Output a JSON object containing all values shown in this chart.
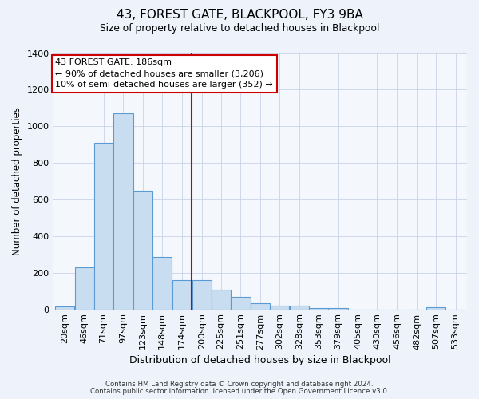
{
  "title": "43, FOREST GATE, BLACKPOOL, FY3 9BA",
  "subtitle": "Size of property relative to detached houses in Blackpool",
  "xlabel": "Distribution of detached houses by size in Blackpool",
  "ylabel": "Number of detached properties",
  "bin_labels": [
    "20sqm",
    "46sqm",
    "71sqm",
    "97sqm",
    "123sqm",
    "148sqm",
    "174sqm",
    "200sqm",
    "225sqm",
    "251sqm",
    "277sqm",
    "302sqm",
    "328sqm",
    "353sqm",
    "379sqm",
    "405sqm",
    "430sqm",
    "456sqm",
    "482sqm",
    "507sqm",
    "533sqm"
  ],
  "bin_centers": [
    20,
    46,
    71,
    97,
    123,
    148,
    174,
    200,
    225,
    251,
    277,
    302,
    328,
    353,
    379,
    405,
    430,
    456,
    482,
    507,
    533
  ],
  "bar_values": [
    15,
    228,
    910,
    1070,
    650,
    285,
    158,
    158,
    105,
    70,
    35,
    20,
    20,
    5,
    5,
    0,
    0,
    0,
    0,
    10,
    0
  ],
  "bar_color": "#c9ddf0",
  "bar_edge_color": "#5b9bd5",
  "vline_color": "#cc0000",
  "annotation_title": "43 FOREST GATE: 186sqm",
  "annotation_line1": "← 90% of detached houses are smaller (3,206)",
  "annotation_line2": "10% of semi-detached houses are larger (352) →",
  "ylim": [
    0,
    1400
  ],
  "yticks": [
    0,
    200,
    400,
    600,
    800,
    1000,
    1200,
    1400
  ],
  "footnote1": "Contains HM Land Registry data © Crown copyright and database right 2024.",
  "footnote2": "Contains public sector information licensed under the Open Government Licence v3.0.",
  "bg_color": "#eef3fb",
  "plot_bg_color": "#f4f8fd",
  "grid_color": "#c8d4e8"
}
